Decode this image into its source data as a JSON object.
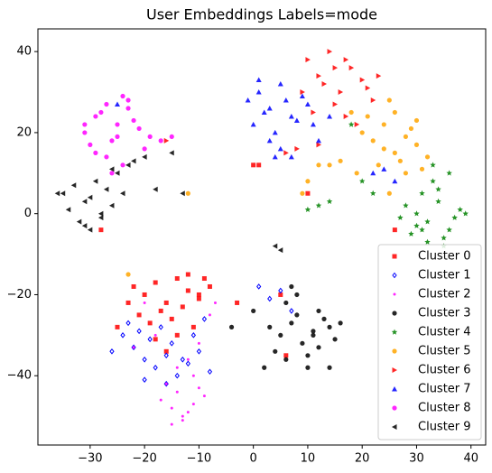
{
  "chart_data": {
    "type": "scatter",
    "title": "User Embeddings Labels=mode",
    "xlim": [
      -39.6,
      42.7
    ],
    "ylim": [
      -57.1,
      45.6
    ],
    "xticks": [
      {
        "value": -30,
        "label": "−30"
      },
      {
        "value": -20,
        "label": "−20"
      },
      {
        "value": -10,
        "label": "−10"
      },
      0,
      10,
      20,
      30,
      40
    ],
    "yticks": [
      {
        "value": -40,
        "label": "−40"
      },
      {
        "value": -20,
        "label": "−20"
      },
      0,
      20,
      40
    ],
    "legend": "lower right",
    "series": [
      {
        "name": "Cluster 0",
        "color": "red",
        "marker": "square",
        "x": [
          -22,
          -20,
          -18,
          -16,
          -14,
          -12,
          -10,
          -8,
          -21,
          -19,
          -17,
          -15,
          -13,
          -11,
          -9,
          -23,
          -18,
          -14,
          -10,
          -25,
          -16,
          -12,
          0,
          1,
          -28,
          26,
          10,
          6,
          -3,
          5
        ],
        "y": [
          -18,
          -20,
          -17,
          -22,
          -16,
          -19,
          -21,
          -18,
          -25,
          -27,
          -24,
          -26,
          -23,
          -28,
          -16,
          -22,
          -31,
          -30,
          -20,
          -28,
          -34,
          -15,
          12,
          12,
          -4,
          -4,
          5,
          -35,
          -22,
          -20
        ]
      },
      {
        "name": "Cluster 1",
        "color": "blue",
        "marker": "diamond",
        "x": [
          -24,
          -22,
          -20,
          -18,
          -16,
          -14,
          -12,
          -10,
          -8,
          -23,
          -21,
          -19,
          -17,
          -15,
          -13,
          -11,
          -26,
          -9,
          1,
          3,
          5,
          7,
          -20,
          -16
        ],
        "y": [
          -30,
          -33,
          -36,
          -38,
          -35,
          -40,
          -37,
          -34,
          -39,
          -27,
          -29,
          -31,
          -28,
          -32,
          -36,
          -30,
          -34,
          -26,
          -18,
          -21,
          -19,
          -24,
          -41,
          -42
        ]
      },
      {
        "name": "Cluster 2",
        "color": "magenta",
        "marker": "point",
        "x": [
          -17,
          -15,
          -13,
          -11,
          -9,
          -16,
          -14,
          -12,
          -10,
          -15,
          -13,
          -11,
          -14,
          -12,
          -18,
          -8,
          -20,
          -22,
          -7,
          -10
        ],
        "y": [
          -46,
          -48,
          -50,
          -47,
          -45,
          -42,
          -44,
          -49,
          -43,
          -52,
          -51,
          -40,
          -38,
          -36,
          -30,
          -25,
          -22,
          -33,
          -22,
          -32
        ]
      },
      {
        "name": "Cluster 3",
        "color": "black",
        "marker": "circle",
        "x": [
          3,
          5,
          7,
          9,
          11,
          13,
          15,
          4,
          6,
          8,
          10,
          12,
          14,
          6,
          8,
          10,
          12,
          2,
          16,
          -4,
          0,
          14,
          7,
          11
        ],
        "y": [
          -28,
          -30,
          -27,
          -32,
          -29,
          -26,
          -31,
          -34,
          -36,
          -25,
          -38,
          -33,
          -28,
          -22,
          -20,
          -35,
          -24,
          -38,
          -27,
          -28,
          -24,
          -38,
          -18,
          -30
        ]
      },
      {
        "name": "Cluster 4",
        "color": "green",
        "marker": "star",
        "x": [
          28,
          30,
          32,
          34,
          36,
          38,
          29,
          31,
          33,
          35,
          37,
          30,
          32,
          34,
          36,
          33,
          27,
          39,
          35,
          12,
          14,
          10,
          22,
          20,
          18,
          31
        ],
        "y": [
          2,
          0,
          -2,
          3,
          -4,
          1,
          -5,
          5,
          8,
          -6,
          -1,
          -3,
          -7,
          6,
          10,
          12,
          -1,
          0,
          -8,
          2,
          3,
          1,
          5,
          8,
          22,
          -4
        ]
      },
      {
        "name": "Cluster 5",
        "color": "orange",
        "marker": "circle",
        "x": [
          20,
          22,
          24,
          26,
          28,
          30,
          32,
          21,
          23,
          25,
          27,
          29,
          31,
          24,
          26,
          28,
          30,
          18,
          19,
          10,
          12,
          9,
          14,
          -12,
          -23,
          25,
          16
        ],
        "y": [
          20,
          18,
          22,
          15,
          19,
          17,
          14,
          24,
          12,
          28,
          13,
          21,
          11,
          16,
          25,
          10,
          23,
          25,
          10,
          8,
          12,
          5,
          12,
          5,
          -15,
          5,
          13
        ]
      },
      {
        "name": "Cluster 6",
        "color": "red",
        "marker": "triangle-right",
        "x": [
          10,
          12,
          14,
          16,
          18,
          20,
          22,
          11,
          13,
          15,
          17,
          19,
          21,
          9,
          15,
          17,
          23,
          6,
          -16,
          8,
          12
        ],
        "y": [
          38,
          34,
          40,
          30,
          36,
          33,
          28,
          25,
          32,
          27,
          38,
          22,
          31,
          30,
          36,
          24,
          34,
          15,
          18,
          16,
          17
        ]
      },
      {
        "name": "Cluster 7",
        "color": "blue",
        "marker": "triangle-up",
        "x": [
          -1,
          1,
          3,
          5,
          7,
          9,
          11,
          0,
          2,
          4,
          6,
          8,
          10,
          12,
          1,
          3,
          5,
          7,
          22,
          24,
          26,
          -25,
          14,
          4
        ],
        "y": [
          28,
          30,
          26,
          32,
          24,
          29,
          22,
          22,
          25,
          20,
          28,
          23,
          27,
          18,
          33,
          18,
          16,
          14,
          10,
          11,
          8,
          27,
          24,
          14
        ]
      },
      {
        "name": "Cluster 8",
        "color": "magenta",
        "marker": "circle",
        "x": [
          -31,
          -29,
          -27,
          -25,
          -23,
          -21,
          -19,
          -30,
          -28,
          -26,
          -24,
          -22,
          -20,
          -27,
          -25,
          -23,
          -29,
          -31,
          -17,
          -15,
          -24,
          -26
        ],
        "y": [
          20,
          24,
          27,
          22,
          26,
          21,
          19,
          17,
          25,
          18,
          29,
          23,
          16,
          14,
          19,
          28,
          15,
          22,
          18,
          19,
          12,
          10
        ]
      },
      {
        "name": "Cluster 9",
        "color": "black",
        "marker": "triangle-left",
        "x": [
          -35,
          -33,
          -31,
          -29,
          -27,
          -25,
          -23,
          -34,
          -32,
          -30,
          -28,
          -26,
          -24,
          -22,
          -30,
          -28,
          -26,
          -20,
          -18,
          -15,
          -13,
          4,
          5,
          -36,
          -31
        ],
        "y": [
          5,
          7,
          3,
          8,
          6,
          10,
          12,
          1,
          -2,
          4,
          -1,
          2,
          5,
          13,
          -4,
          0,
          11,
          14,
          6,
          15,
          5,
          -8,
          -9,
          5,
          -3
        ]
      }
    ]
  }
}
